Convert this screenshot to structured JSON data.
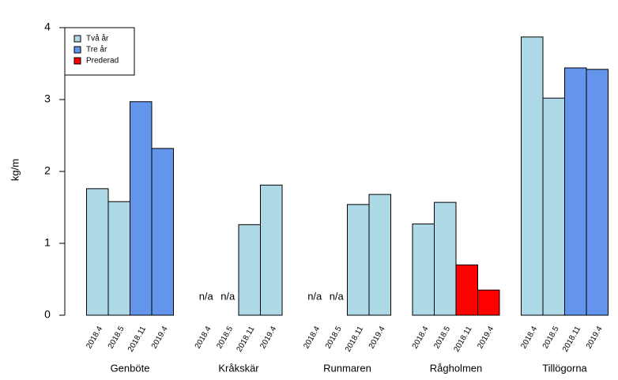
{
  "chart_data": {
    "type": "grouped_bar",
    "ylabel": "kg/m",
    "ylim": [
      0,
      4
    ],
    "yticks": [
      0,
      1,
      2,
      3,
      4
    ],
    "legend": "top-left",
    "groups": [
      {
        "name": "Genböte",
        "categories": [
          "2018.4",
          "2018.5",
          "2018.11",
          "2019.4"
        ]
      },
      {
        "name": "Kråkskär",
        "categories": [
          "2018.4",
          "2018.5",
          "2018.11",
          "2019.4"
        ]
      },
      {
        "name": "Runmaren",
        "categories": [
          "2018.4",
          "2018.5",
          "2018.11",
          "2019.4"
        ]
      },
      {
        "name": "Rågholmen",
        "categories": [
          "2018.4",
          "2018.5",
          "2018.11",
          "2019.4"
        ]
      },
      {
        "name": "Tillögorna",
        "categories": [
          "2018.4",
          "2018.5",
          "2018.11",
          "2019.4"
        ]
      }
    ],
    "series": [
      {
        "name": "Två år",
        "color": "#add8e6",
        "values": [
          1.76,
          1.58,
          null,
          null,
          null,
          null,
          1.26,
          1.81,
          null,
          null,
          1.54,
          1.68,
          1.27,
          1.57,
          null,
          null,
          3.87,
          3.02,
          null,
          null
        ],
        "value_labels": [
          null,
          null,
          null,
          null,
          "n/a",
          "n/a",
          null,
          null,
          "n/a",
          "n/a",
          null,
          null,
          null,
          null,
          null,
          null,
          null,
          null,
          null,
          null
        ]
      },
      {
        "name": "Tre år",
        "color": "#6495ed",
        "values": [
          null,
          null,
          2.97,
          2.32,
          null,
          null,
          null,
          null,
          null,
          null,
          null,
          null,
          null,
          null,
          null,
          null,
          null,
          null,
          3.44,
          3.42
        ]
      },
      {
        "name": "Prederad",
        "color": "#ff0000",
        "values": [
          null,
          null,
          null,
          null,
          null,
          null,
          null,
          null,
          null,
          null,
          null,
          null,
          null,
          null,
          0.7,
          0.35,
          null,
          null,
          null,
          null
        ]
      }
    ]
  }
}
